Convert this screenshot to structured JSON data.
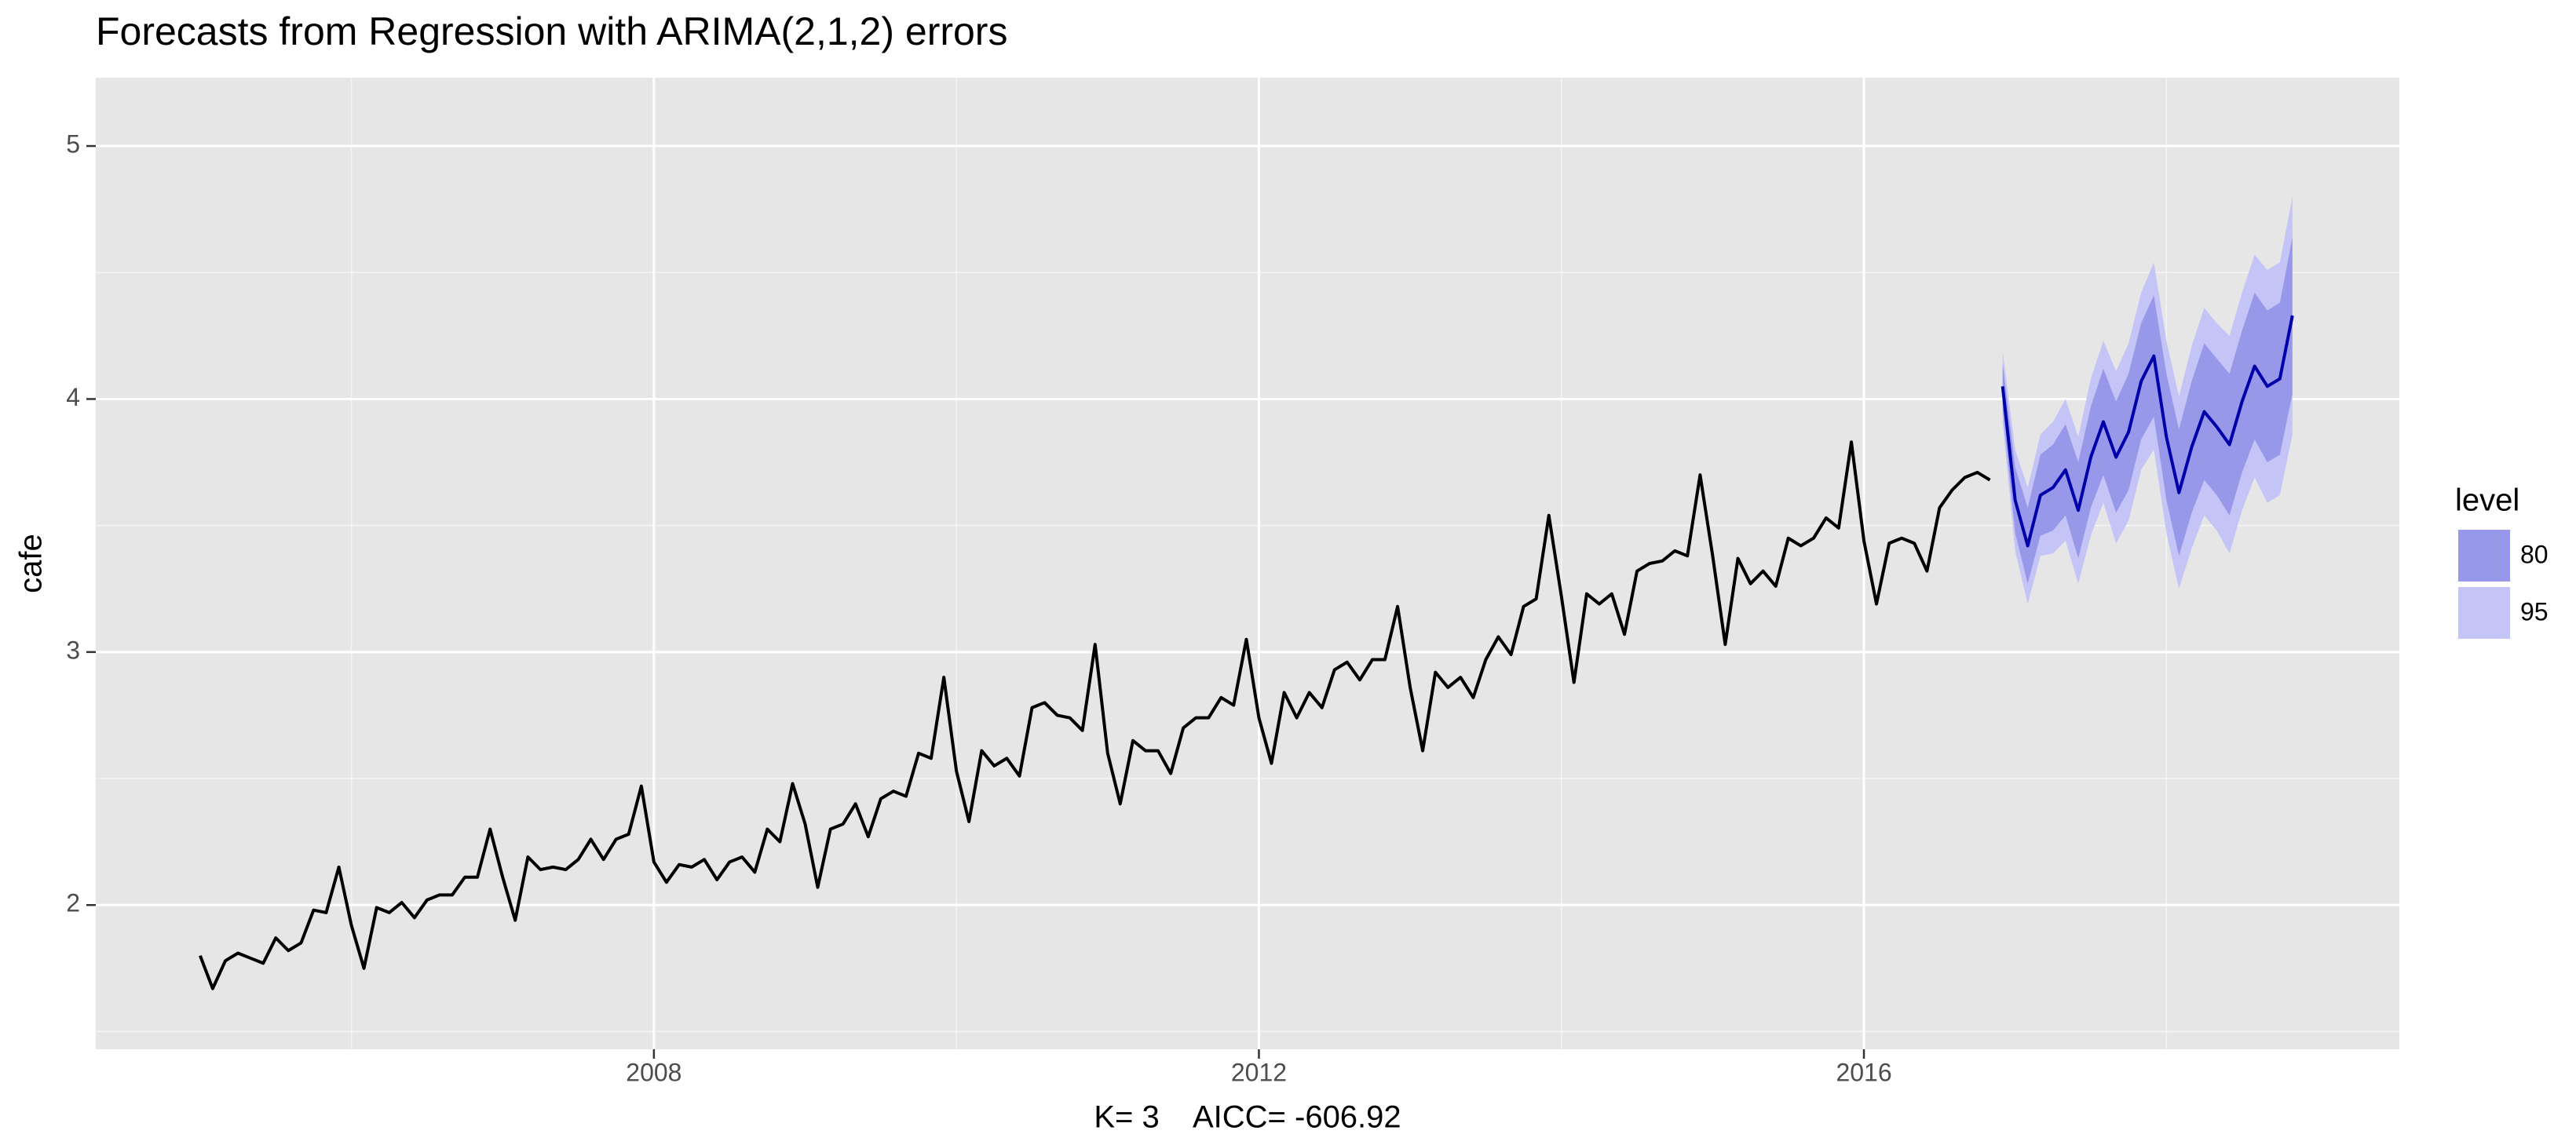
{
  "chart_data": {
    "type": "line",
    "title": "Forecasts from Regression with ARIMA(2,1,2) errors",
    "xlabel": "K= 3    AICC= -606.92",
    "ylabel": "cafe",
    "xlim": [
      2004.31,
      2019.54
    ],
    "ylim": [
      1.43,
      5.27
    ],
    "xticks": [
      2008,
      2012,
      2016
    ],
    "yticks": [
      2,
      3,
      4,
      5
    ],
    "xminor": [
      2006,
      2010,
      2014,
      2018
    ],
    "yminor": [
      1.5,
      2.5,
      3.5,
      4.5
    ],
    "grid": true,
    "history": {
      "color": "#000000",
      "x": [
        2005,
        2005.083,
        2005.167,
        2005.25,
        2005.333,
        2005.417,
        2005.5,
        2005.583,
        2005.667,
        2005.75,
        2005.833,
        2005.917,
        2006,
        2006.083,
        2006.167,
        2006.25,
        2006.333,
        2006.417,
        2006.5,
        2006.583,
        2006.667,
        2006.75,
        2006.833,
        2006.917,
        2007,
        2007.083,
        2007.167,
        2007.25,
        2007.333,
        2007.417,
        2007.5,
        2007.583,
        2007.667,
        2007.75,
        2007.833,
        2007.917,
        2008,
        2008.083,
        2008.167,
        2008.25,
        2008.333,
        2008.417,
        2008.5,
        2008.583,
        2008.667,
        2008.75,
        2008.833,
        2008.917,
        2009,
        2009.083,
        2009.167,
        2009.25,
        2009.333,
        2009.417,
        2009.5,
        2009.583,
        2009.667,
        2009.75,
        2009.833,
        2009.917,
        2010,
        2010.083,
        2010.167,
        2010.25,
        2010.333,
        2010.417,
        2010.5,
        2010.583,
        2010.667,
        2010.75,
        2010.833,
        2010.917,
        2011,
        2011.083,
        2011.167,
        2011.25,
        2011.333,
        2011.417,
        2011.5,
        2011.583,
        2011.667,
        2011.75,
        2011.833,
        2011.917,
        2012,
        2012.083,
        2012.167,
        2012.25,
        2012.333,
        2012.417,
        2012.5,
        2012.583,
        2012.667,
        2012.75,
        2012.833,
        2012.917,
        2013,
        2013.083,
        2013.167,
        2013.25,
        2013.333,
        2013.417,
        2013.5,
        2013.583,
        2013.667,
        2013.75,
        2013.833,
        2013.917,
        2014,
        2014.083,
        2014.167,
        2014.25,
        2014.333,
        2014.417,
        2014.5,
        2014.583,
        2014.667,
        2014.75,
        2014.833,
        2014.917,
        2015,
        2015.083,
        2015.167,
        2015.25,
        2015.333,
        2015.417,
        2015.5,
        2015.583,
        2015.667,
        2015.75,
        2015.833,
        2015.917,
        2016,
        2016.083,
        2016.167,
        2016.25,
        2016.333,
        2016.417,
        2016.5,
        2016.583,
        2016.667,
        2016.75,
        2016.833
      ],
      "values": [
        1.8,
        1.67,
        1.78,
        1.81,
        1.79,
        1.77,
        1.87,
        1.82,
        1.85,
        1.98,
        1.97,
        2.15,
        1.92,
        1.75,
        1.99,
        1.97,
        2.01,
        1.95,
        2.02,
        2.04,
        2.04,
        2.11,
        2.11,
        2.3,
        2.11,
        1.94,
        2.19,
        2.14,
        2.15,
        2.14,
        2.18,
        2.26,
        2.18,
        2.26,
        2.28,
        2.47,
        2.17,
        2.09,
        2.16,
        2.15,
        2.18,
        2.1,
        2.17,
        2.19,
        2.13,
        2.3,
        2.25,
        2.48,
        2.32,
        2.07,
        2.3,
        2.32,
        2.4,
        2.27,
        2.42,
        2.45,
        2.43,
        2.6,
        2.58,
        2.9,
        2.53,
        2.33,
        2.61,
        2.55,
        2.58,
        2.51,
        2.78,
        2.8,
        2.75,
        2.74,
        2.69,
        3.03,
        2.6,
        2.4,
        2.65,
        2.61,
        2.61,
        2.52,
        2.7,
        2.74,
        2.74,
        2.82,
        2.79,
        3.05,
        2.74,
        2.56,
        2.84,
        2.74,
        2.84,
        2.78,
        2.93,
        2.96,
        2.89,
        2.97,
        2.97,
        3.18,
        2.86,
        2.61,
        2.92,
        2.86,
        2.9,
        2.82,
        2.97,
        3.06,
        2.99,
        3.18,
        3.21,
        3.54,
        3.22,
        2.88,
        3.23,
        3.19,
        3.23,
        3.07,
        3.32,
        3.35,
        3.36,
        3.4,
        3.38,
        3.7,
        3.38,
        3.03,
        3.37,
        3.27,
        3.32,
        3.26,
        3.45,
        3.42,
        3.45,
        3.53,
        3.49,
        3.83,
        3.44,
        3.19,
        3.43,
        3.45,
        3.43,
        3.32,
        3.57,
        3.64,
        3.69,
        3.71,
        3.68
      ]
    },
    "forecast": {
      "color": "#0000aa",
      "x": [
        2016.917,
        2017,
        2017.083,
        2017.167,
        2017.25,
        2017.333,
        2017.417,
        2017.5,
        2017.583,
        2017.667,
        2017.75,
        2017.833,
        2017.917,
        2018,
        2018.083,
        2018.167,
        2018.25,
        2018.333,
        2018.417,
        2018.5,
        2018.583,
        2018.667,
        2018.75,
        2018.833
      ],
      "values": [
        4.05,
        3.6,
        3.42,
        3.62,
        3.65,
        3.72,
        3.56,
        3.77,
        3.91,
        3.77,
        3.87,
        4.07,
        4.17,
        3.85,
        3.63,
        3.81,
        3.95,
        3.89,
        3.82,
        3.99,
        4.13,
        4.05,
        4.08,
        4.33
      ]
    },
    "legend_title": "level",
    "legend_position": "right",
    "intervals": [
      {
        "name": "80",
        "color": "#9898ea",
        "lower": [
          3.96,
          3.47,
          3.27,
          3.46,
          3.48,
          3.54,
          3.37,
          3.57,
          3.7,
          3.55,
          3.64,
          3.84,
          3.93,
          3.6,
          3.38,
          3.55,
          3.68,
          3.62,
          3.54,
          3.71,
          3.84,
          3.75,
          3.78,
          4.02
        ],
        "upper": [
          4.14,
          3.73,
          3.57,
          3.78,
          3.82,
          3.9,
          3.75,
          3.97,
          4.12,
          3.99,
          4.1,
          4.3,
          4.41,
          4.1,
          3.88,
          4.07,
          4.22,
          4.16,
          4.1,
          4.27,
          4.42,
          4.35,
          4.38,
          4.64
        ]
      },
      {
        "name": "95",
        "color": "#c4c4f6",
        "lower": [
          3.91,
          3.4,
          3.19,
          3.38,
          3.39,
          3.44,
          3.27,
          3.46,
          3.59,
          3.43,
          3.52,
          3.72,
          3.8,
          3.47,
          3.25,
          3.41,
          3.54,
          3.48,
          3.39,
          3.56,
          3.69,
          3.59,
          3.62,
          3.86
        ],
        "upper": [
          4.19,
          3.8,
          3.65,
          3.86,
          3.91,
          4.0,
          3.85,
          4.08,
          4.23,
          4.11,
          4.22,
          4.42,
          4.54,
          4.23,
          4.01,
          4.21,
          4.36,
          4.3,
          4.25,
          4.42,
          4.57,
          4.51,
          4.54,
          4.8
        ]
      }
    ]
  }
}
